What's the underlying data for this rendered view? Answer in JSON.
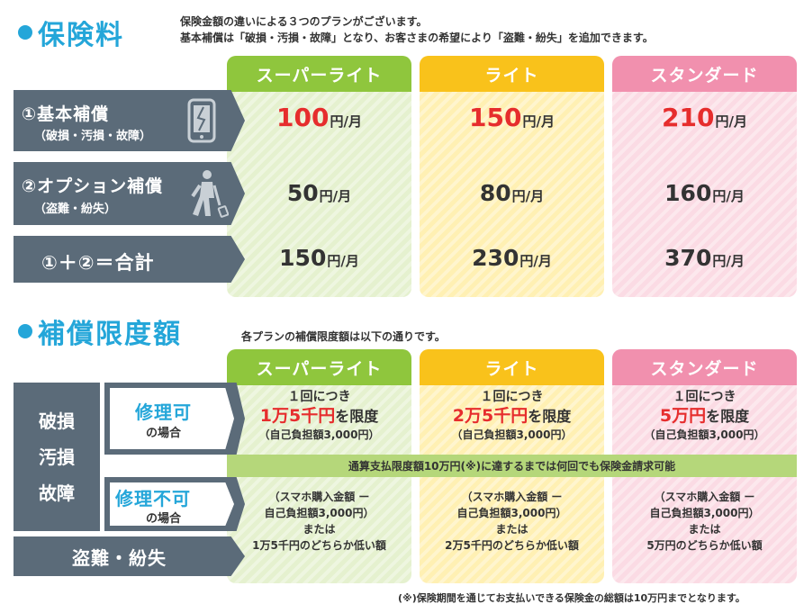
{
  "premium": {
    "title": "保険料",
    "intro_line1": "保険金額の違いによる３つのプランがございます。",
    "intro_line2": "基本補償は「破損・汚損・故障」となり、お客さまの希望により「盗難・紛失」を追加できます。",
    "plans": [
      "スーパーライト",
      "ライト",
      "スタンダード"
    ],
    "rows": [
      {
        "label": "①基本補償",
        "sub": "（破損・汚損・故障）",
        "values": [
          "100",
          "150",
          "210"
        ]
      },
      {
        "label": "②オプション補償",
        "sub": "（盗難・紛失）",
        "values": [
          "50",
          "80",
          "160"
        ]
      },
      {
        "label": "①＋②＝合計",
        "sub": "",
        "values": [
          "150",
          "230",
          "370"
        ]
      }
    ],
    "unit": "円/月"
  },
  "limit": {
    "title": "補償限度額",
    "intro": "各プランの補償限度額は以下の通りです。",
    "plans": [
      "スーパーライト",
      "ライト",
      "スタンダード"
    ],
    "left_category": [
      "破損",
      "汚損",
      "故障"
    ],
    "repairable": {
      "main": "修理可",
      "sub": "の場合"
    },
    "unrepairable": {
      "main": "修理不可",
      "sub": "の場合"
    },
    "theft": "盗難・紛失",
    "per_time": "１回につき",
    "limit_suffix": "を限度",
    "amounts": [
      "1万5千円",
      "2万5千円",
      "5万円"
    ],
    "deductible": "（自己負担額3,000円）",
    "notice": "通算支払限度額10万円(※)に達するまでは何回でも保険金請求可能",
    "unrep_line1": "（スマホ購入金額 ー",
    "unrep_line2": "自己負担額3,000円）",
    "or": "または",
    "lower_of": [
      "1万5千円のどちらか低い額",
      "2万5千円のどちらか低い額",
      "5万円のどちらか低い額"
    ],
    "footnote": "(※)保険期間を通じてお支払いできる保険金の総額は10万円までとなります。"
  },
  "colors": {
    "accent": "#24a6d9",
    "green": "#8fc63d",
    "yellow": "#f9c21b",
    "pink": "#f190ae",
    "red": "#e62d2d",
    "slate": "#5b6b79"
  },
  "icons": {
    "phone": "broken-phone-icon",
    "walker": "walking-person-icon"
  }
}
